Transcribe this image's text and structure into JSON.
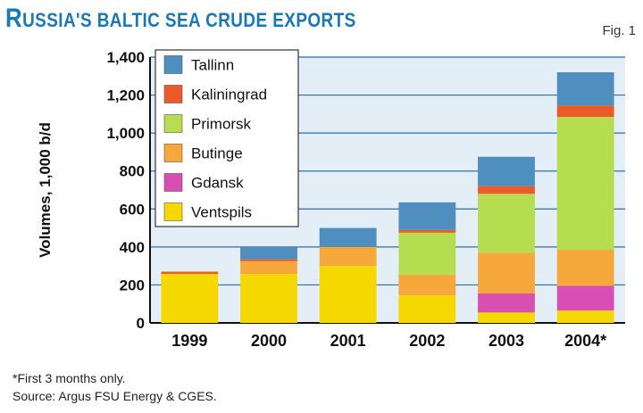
{
  "title": "Russia's baltic sea crude exports",
  "title_parts": {
    "big1": "R",
    "small1": "USSIA'S BALTIC SEA CRUDE EXPORTS"
  },
  "fig_label": "Fig. 1",
  "footnote": "*First 3 months only.",
  "source": "Source: Argus FSU Energy & CGES.",
  "chart_data": {
    "type": "bar",
    "stacked": true,
    "categories": [
      "1999",
      "2000",
      "2001",
      "2002",
      "2003",
      "2004*"
    ],
    "ylabel": "Volumes, 1,000 b/d",
    "ylim": [
      0,
      1400
    ],
    "yticks": [
      0,
      200,
      400,
      600,
      800,
      1000,
      1200,
      1400
    ],
    "ytick_labels": [
      "0",
      "200",
      "400",
      "600",
      "800",
      "1,000",
      "1,200",
      "1,400"
    ],
    "grid": true,
    "legend_position": "top-left",
    "series": [
      {
        "name": "Ventspils",
        "color": "#f5d800",
        "values": [
          258,
          258,
          300,
          145,
          55,
          65
        ]
      },
      {
        "name": "Gdansk",
        "color": "#d84fb4",
        "values": [
          0,
          0,
          0,
          0,
          100,
          130
        ]
      },
      {
        "name": "Butinge",
        "color": "#f7a83a",
        "values": [
          0,
          67,
          100,
          110,
          215,
          190
        ]
      },
      {
        "name": "Primorsk",
        "color": "#b6dc50",
        "values": [
          0,
          0,
          0,
          220,
          310,
          700
        ]
      },
      {
        "name": "Kaliningrad",
        "color": "#ec5a2a",
        "values": [
          12,
          10,
          0,
          15,
          40,
          60
        ]
      },
      {
        "name": "Tallinn",
        "color": "#4f8fc0",
        "values": [
          0,
          65,
          100,
          145,
          155,
          175
        ]
      }
    ]
  }
}
